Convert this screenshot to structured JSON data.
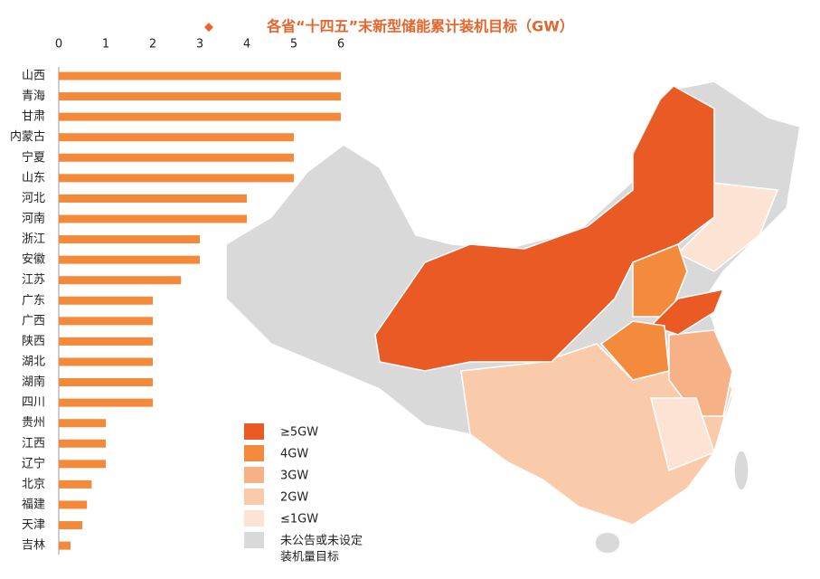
{
  "chart_data": {
    "type": "bar",
    "orientation": "horizontal",
    "title": "各省“十四五”末新型储能累计装机目标（GW）",
    "categories": [
      "山西",
      "青海",
      "甘肃",
      "内蒙古",
      "宁夏",
      "山东",
      "河北",
      "河南",
      "浙江",
      "安徽",
      "江苏",
      "广东",
      "广西",
      "陕西",
      "湖北",
      "湖南",
      "四川",
      "贵州",
      "江西",
      "辽宁",
      "北京",
      "福建",
      "天津",
      "吉林"
    ],
    "values": [
      6,
      6,
      6,
      5,
      5,
      5,
      4,
      4,
      3,
      3,
      2.6,
      2,
      2,
      2,
      2,
      2,
      2,
      1,
      1,
      1,
      0.7,
      0.6,
      0.5,
      0.25
    ],
    "color": "#f5893a",
    "xlim": [
      0,
      6
    ],
    "xticks": [
      0,
      1,
      2,
      3,
      4,
      5,
      6
    ],
    "map_legend": [
      {
        "label": "≥5GW",
        "color": "#ea5a24"
      },
      {
        "label": "4GW",
        "color": "#f38a3c"
      },
      {
        "label": "3GW",
        "color": "#f6b186"
      },
      {
        "label": "2GW",
        "color": "#f9cbaa"
      },
      {
        "label": "≤1GW",
        "color": "#fce3d3"
      },
      {
        "lines": [
          "未公告或未设定",
          "装机量目标"
        ],
        "color": "#d9d9d9"
      }
    ]
  }
}
